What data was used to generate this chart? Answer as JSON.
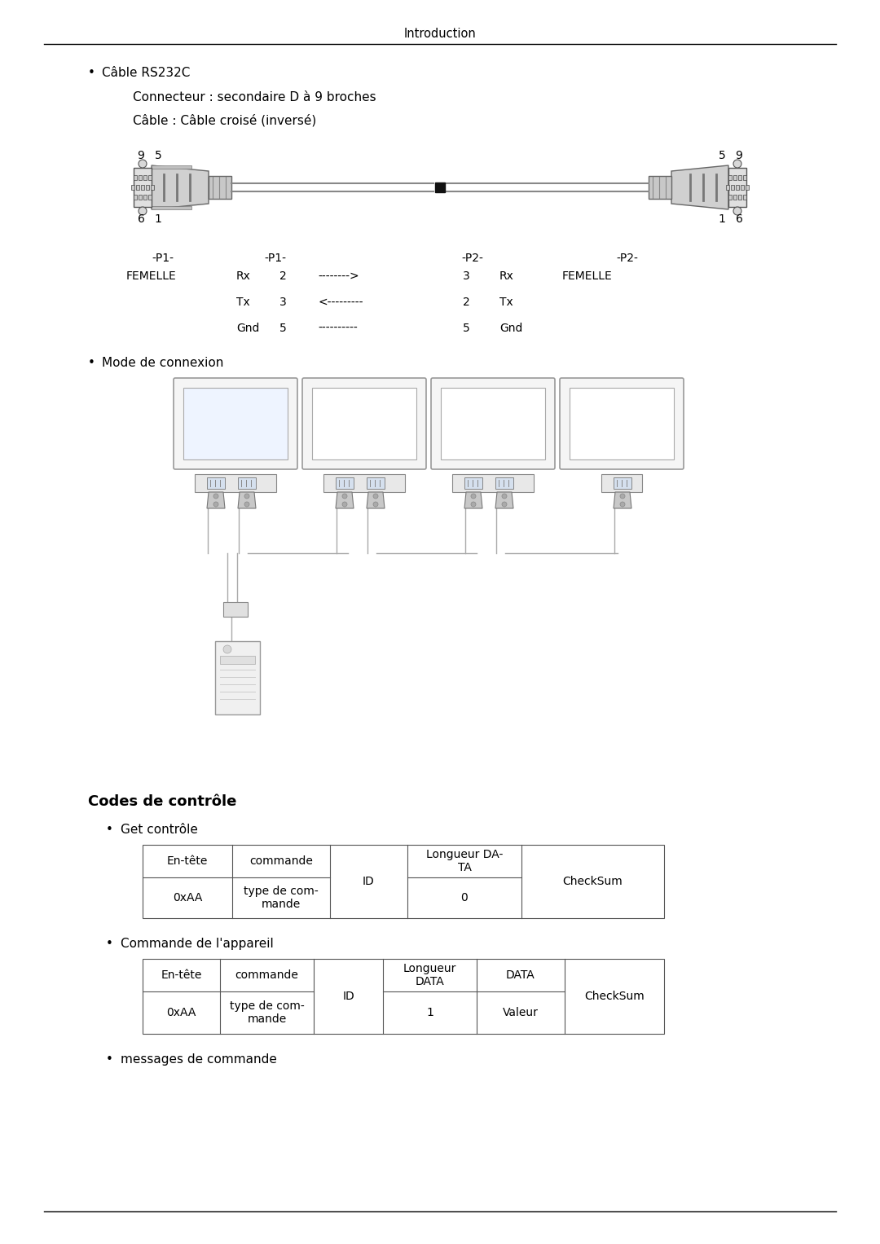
{
  "title": "Introduction",
  "bg_color": "#ffffff",
  "text_color": "#000000",
  "bullet1": "Câble RS232C",
  "sub1": "Connecteur : secondaire D à 9 broches",
  "sub2": "Câble : Câble croisé (inversé)",
  "bullet2": "Mode de connexion",
  "section_title": "Codes de contrôle",
  "bullet3": "Get contrôle",
  "bullet4": "Commande de l'appareil",
  "bullet5": "messages de commande",
  "p1_left": "-P1-",
  "p1_right": "-P1-",
  "p2_left": "-P2-",
  "p2_right": "-P2-",
  "femelle_left": "FEMELLE",
  "femelle_right": "FEMELLE",
  "rx_label": "Rx",
  "tx_label": "Tx",
  "gnd_label": "Gnd",
  "arrow_right": "-------->",
  "arrow_left": "<---------",
  "arrow_none": "----------",
  "pin2": "2",
  "pin3": "3",
  "pin5": "5",
  "header_color": "#000000",
  "line_color": "#888888",
  "connector_color": "#cccccc",
  "connector_edge": "#777777"
}
